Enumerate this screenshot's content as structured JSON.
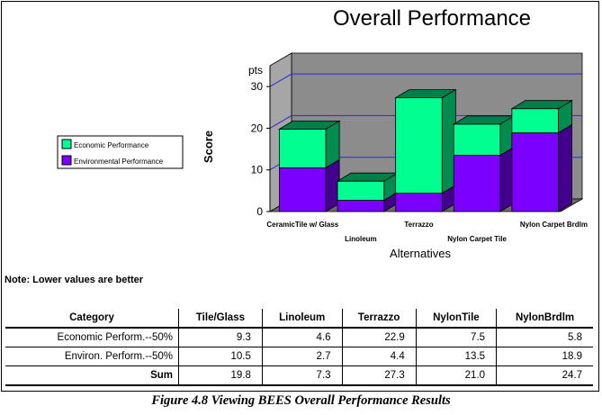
{
  "chart_data": {
    "type": "bar",
    "stacked": true,
    "three_d": true,
    "title": "Overall Performance",
    "xlabel": "Alternatives",
    "ylabel": "Score",
    "yunit": "pts",
    "ylim": [
      0,
      35
    ],
    "yticks": [
      0,
      10,
      20,
      30
    ],
    "grid": true,
    "legend_position": "left",
    "categories": [
      "CeramicTile w/ Glass",
      "Linoleum",
      "Terrazzo",
      "Nylon Carpet Tile",
      "Nylon Carpet Brdlm"
    ],
    "series": [
      {
        "name": "Environmental Performance",
        "values": [
          10.5,
          2.7,
          4.4,
          13.5,
          18.9
        ],
        "color": "#7b00ff"
      },
      {
        "name": "Economic Performance",
        "values": [
          9.3,
          4.6,
          22.9,
          7.5,
          5.8
        ],
        "color": "#00ff90"
      }
    ],
    "legend": [
      "Economic Performance",
      "Environmental Performance"
    ]
  },
  "note": "Note: Lower values are better",
  "table": {
    "headers": [
      "Category",
      "Tile/Glass",
      "Linoleum",
      "Terrazzo",
      "NylonTile",
      "NylonBrdlm"
    ],
    "rows": [
      {
        "category": "Economic Perform.--50%",
        "values": [
          "9.3",
          "4.6",
          "22.9",
          "7.5",
          "5.8"
        ]
      },
      {
        "category": "Environ. Perform.--50%",
        "values": [
          "10.5",
          "2.7",
          "4.4",
          "13.5",
          "18.9"
        ]
      },
      {
        "category": "Sum",
        "values": [
          "19.8",
          "7.3",
          "27.3",
          "21.0",
          "24.7"
        ]
      }
    ]
  },
  "caption": "Figure 4.8 Viewing BEES Overall Performance Results"
}
